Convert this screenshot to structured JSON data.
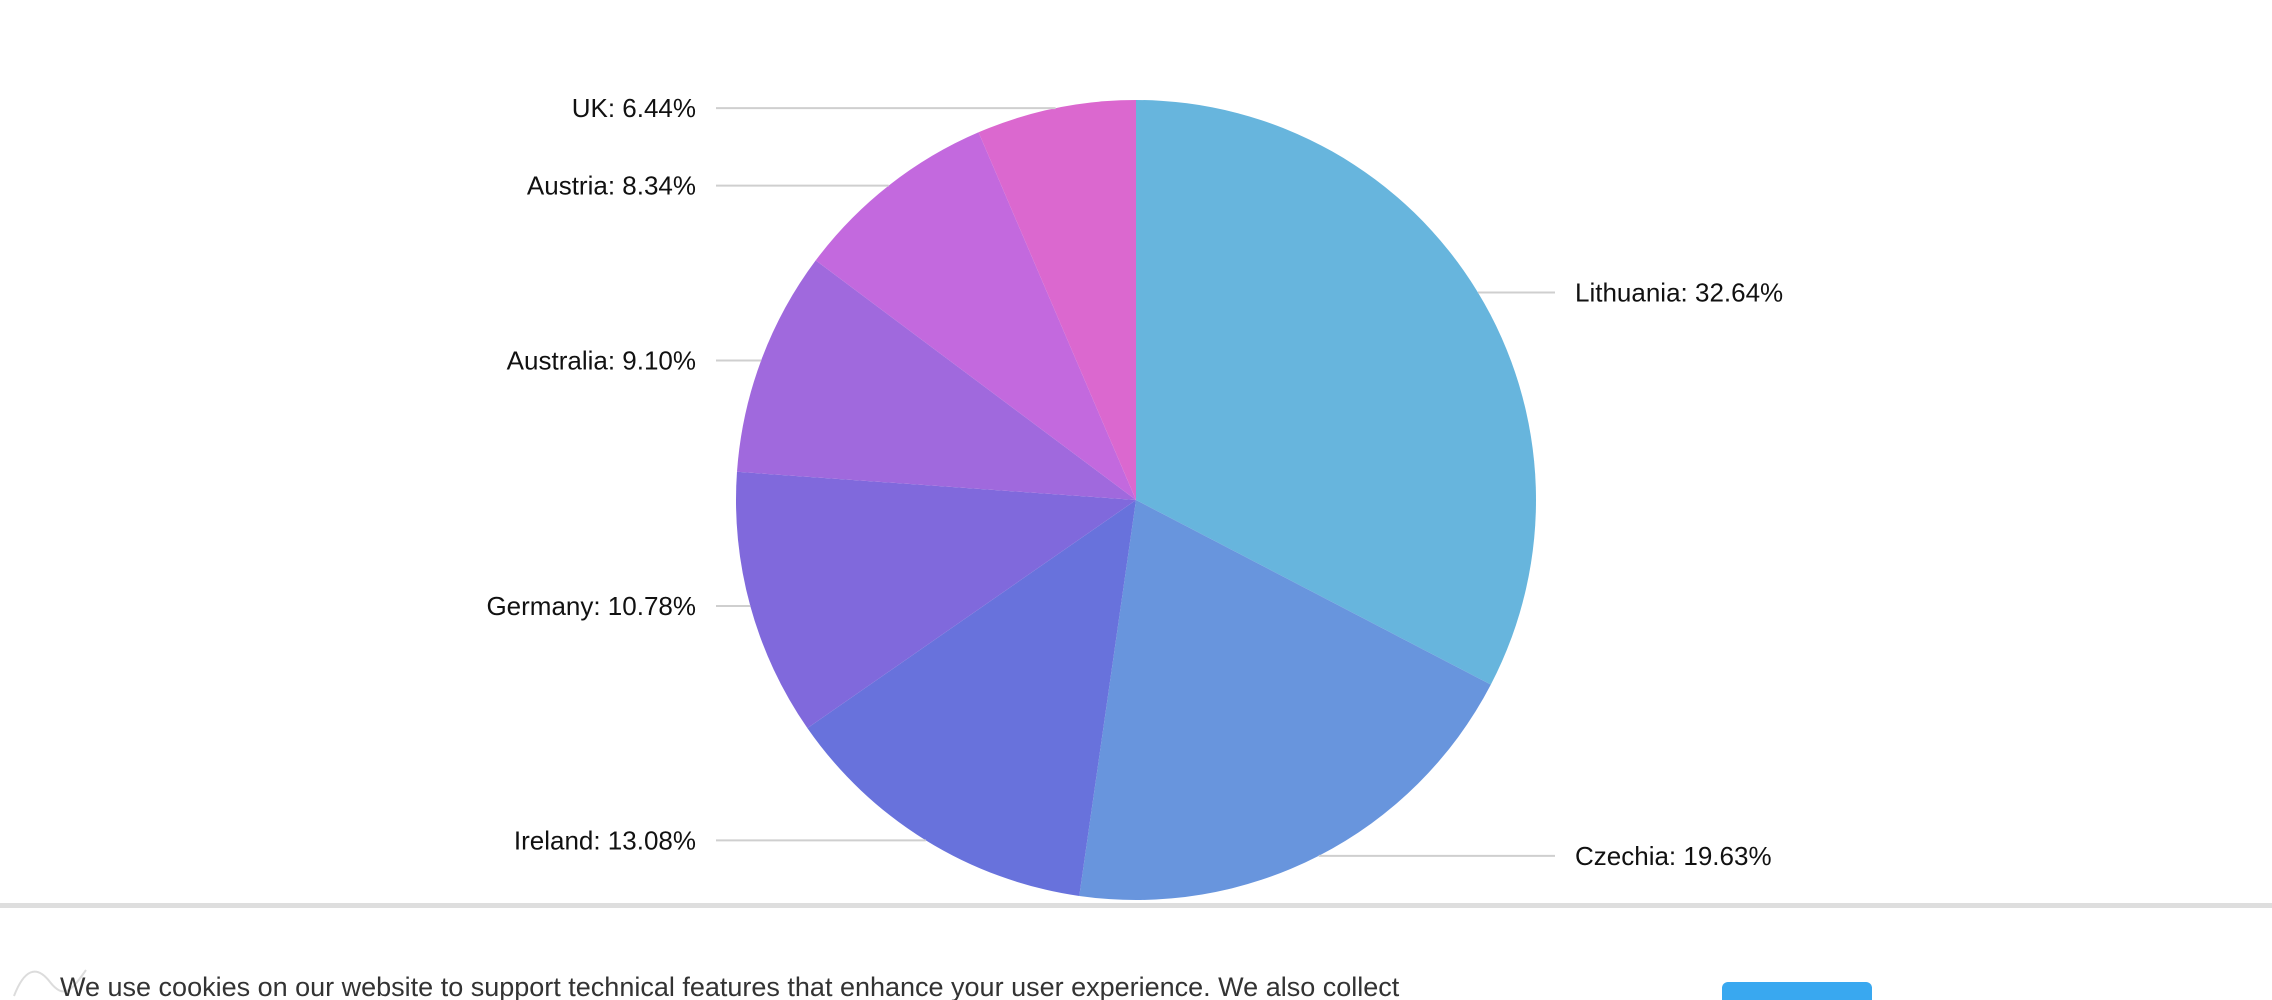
{
  "chart_data": {
    "type": "pie",
    "slices": [
      {
        "label": "Lithuania",
        "value": 32.64,
        "text": "Lithuania: 32.64%",
        "color": "#67b5dd"
      },
      {
        "label": "Czechia",
        "value": 19.63,
        "text": "Czechia: 19.63%",
        "color": "#6895dd"
      },
      {
        "label": "Ireland",
        "value": 13.08,
        "text": "Ireland: 13.08%",
        "color": "#6872dc"
      },
      {
        "label": "Germany",
        "value": 10.78,
        "text": "Germany: 10.78%",
        "color": "#8069dc"
      },
      {
        "label": "Australia",
        "value": 9.1,
        "text": "Australia: 9.10%",
        "color": "#a069dd"
      },
      {
        "label": "Austria",
        "value": 8.34,
        "text": "Austria: 8.34%",
        "color": "#c369de"
      },
      {
        "label": "UK",
        "value": 6.44,
        "text": "UK: 6.44%",
        "color": "#db68cf"
      }
    ]
  },
  "cookie_banner": {
    "text": "We use cookies on our website to support technical features that enhance your user experience. We also collect",
    "accept_label": "",
    "accent_color": "#39a8f0"
  }
}
